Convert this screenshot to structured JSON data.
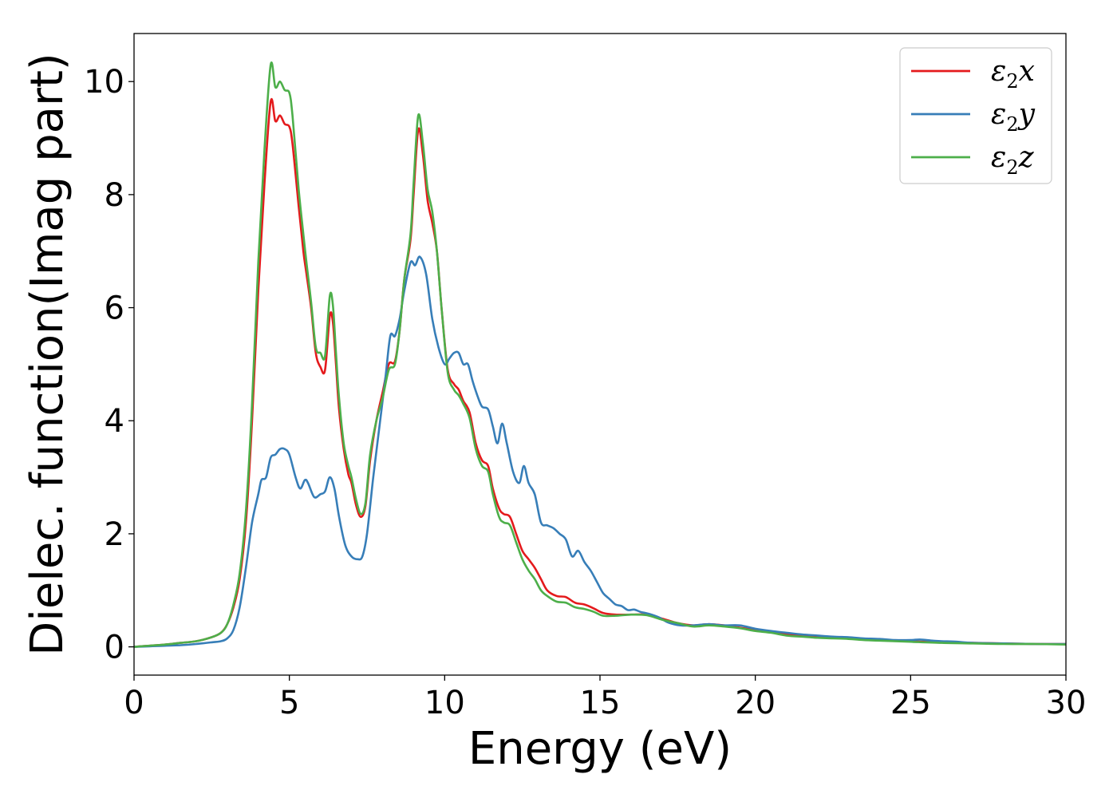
{
  "chart_data": {
    "type": "line",
    "xlabel": "Energy (eV)",
    "ylabel": "Dielec. function(Imag part)",
    "xlim": [
      0,
      30
    ],
    "ylim": [
      -0.5,
      10.85
    ],
    "xticks": [
      0,
      5,
      10,
      15,
      20,
      25,
      30
    ],
    "yticks": [
      0,
      2,
      4,
      6,
      8,
      10
    ],
    "grid": false,
    "legend_position": "top-right",
    "series": [
      {
        "name": "ε2x",
        "legend_base": "ε",
        "legend_sub": "2",
        "legend_suffix": "x",
        "color": "#e41a1c",
        "points": [
          [
            0,
            0
          ],
          [
            0.5,
            0.02
          ],
          [
            1,
            0.04
          ],
          [
            1.5,
            0.07
          ],
          [
            2,
            0.1
          ],
          [
            2.5,
            0.17
          ],
          [
            2.8,
            0.25
          ],
          [
            3,
            0.4
          ],
          [
            3.2,
            0.7
          ],
          [
            3.4,
            1.2
          ],
          [
            3.6,
            2.2
          ],
          [
            3.8,
            4.0
          ],
          [
            4.0,
            6.3
          ],
          [
            4.2,
            8.2
          ],
          [
            4.4,
            9.65
          ],
          [
            4.55,
            9.3
          ],
          [
            4.7,
            9.4
          ],
          [
            4.85,
            9.25
          ],
          [
            5.0,
            9.2
          ],
          [
            5.1,
            8.9
          ],
          [
            5.3,
            7.8
          ],
          [
            5.45,
            7.0
          ],
          [
            5.55,
            6.6
          ],
          [
            5.7,
            6.0
          ],
          [
            5.85,
            5.2
          ],
          [
            6.0,
            4.95
          ],
          [
            6.15,
            4.9
          ],
          [
            6.3,
            5.85
          ],
          [
            6.4,
            5.75
          ],
          [
            6.5,
            5.0
          ],
          [
            6.6,
            4.2
          ],
          [
            6.75,
            3.5
          ],
          [
            6.9,
            3.05
          ],
          [
            7.0,
            2.9
          ],
          [
            7.15,
            2.5
          ],
          [
            7.3,
            2.3
          ],
          [
            7.45,
            2.5
          ],
          [
            7.6,
            3.3
          ],
          [
            7.8,
            4.0
          ],
          [
            8.0,
            4.5
          ],
          [
            8.2,
            5.0
          ],
          [
            8.4,
            5.05
          ],
          [
            8.55,
            5.6
          ],
          [
            8.7,
            6.5
          ],
          [
            8.9,
            7.2
          ],
          [
            9.0,
            8.0
          ],
          [
            9.15,
            9.15
          ],
          [
            9.3,
            8.7
          ],
          [
            9.45,
            7.9
          ],
          [
            9.6,
            7.5
          ],
          [
            9.75,
            7.0
          ],
          [
            9.9,
            6.0
          ],
          [
            10.1,
            4.9
          ],
          [
            10.3,
            4.65
          ],
          [
            10.45,
            4.55
          ],
          [
            10.6,
            4.35
          ],
          [
            10.8,
            4.15
          ],
          [
            11.0,
            3.6
          ],
          [
            11.2,
            3.3
          ],
          [
            11.4,
            3.2
          ],
          [
            11.55,
            2.8
          ],
          [
            11.75,
            2.45
          ],
          [
            11.9,
            2.35
          ],
          [
            12.1,
            2.3
          ],
          [
            12.3,
            2.0
          ],
          [
            12.5,
            1.7
          ],
          [
            12.7,
            1.55
          ],
          [
            12.9,
            1.4
          ],
          [
            13.1,
            1.2
          ],
          [
            13.3,
            1.0
          ],
          [
            13.6,
            0.9
          ],
          [
            13.9,
            0.88
          ],
          [
            14.2,
            0.78
          ],
          [
            14.5,
            0.75
          ],
          [
            14.8,
            0.68
          ],
          [
            15.1,
            0.6
          ],
          [
            15.5,
            0.57
          ],
          [
            16,
            0.57
          ],
          [
            16.5,
            0.57
          ],
          [
            17,
            0.5
          ],
          [
            17.5,
            0.42
          ],
          [
            18,
            0.38
          ],
          [
            18.5,
            0.4
          ],
          [
            19,
            0.38
          ],
          [
            19.5,
            0.34
          ],
          [
            20,
            0.3
          ],
          [
            20.5,
            0.27
          ],
          [
            21,
            0.22
          ],
          [
            21.5,
            0.2
          ],
          [
            22,
            0.18
          ],
          [
            22.5,
            0.16
          ],
          [
            23,
            0.15
          ],
          [
            23.5,
            0.13
          ],
          [
            24,
            0.12
          ],
          [
            25,
            0.1
          ],
          [
            26,
            0.08
          ],
          [
            27,
            0.07
          ],
          [
            28,
            0.06
          ],
          [
            29,
            0.05
          ],
          [
            30,
            0.05
          ]
        ]
      },
      {
        "name": "ε2y",
        "legend_base": "ε",
        "legend_sub": "2",
        "legend_suffix": "y",
        "color": "#377eb8",
        "points": [
          [
            0,
            0
          ],
          [
            0.5,
            0.01
          ],
          [
            1,
            0.02
          ],
          [
            1.5,
            0.03
          ],
          [
            2,
            0.05
          ],
          [
            2.5,
            0.08
          ],
          [
            2.8,
            0.1
          ],
          [
            3.0,
            0.15
          ],
          [
            3.2,
            0.3
          ],
          [
            3.4,
            0.7
          ],
          [
            3.6,
            1.4
          ],
          [
            3.8,
            2.2
          ],
          [
            4.0,
            2.7
          ],
          [
            4.1,
            2.95
          ],
          [
            4.25,
            3.0
          ],
          [
            4.4,
            3.35
          ],
          [
            4.55,
            3.4
          ],
          [
            4.7,
            3.5
          ],
          [
            4.85,
            3.5
          ],
          [
            5.0,
            3.4
          ],
          [
            5.2,
            3.0
          ],
          [
            5.35,
            2.8
          ],
          [
            5.5,
            2.95
          ],
          [
            5.6,
            2.9
          ],
          [
            5.8,
            2.65
          ],
          [
            6.0,
            2.7
          ],
          [
            6.15,
            2.75
          ],
          [
            6.3,
            3.0
          ],
          [
            6.45,
            2.8
          ],
          [
            6.6,
            2.3
          ],
          [
            6.8,
            1.8
          ],
          [
            7.0,
            1.6
          ],
          [
            7.2,
            1.55
          ],
          [
            7.35,
            1.6
          ],
          [
            7.5,
            2.0
          ],
          [
            7.7,
            3.0
          ],
          [
            7.9,
            3.9
          ],
          [
            8.1,
            4.8
          ],
          [
            8.25,
            5.5
          ],
          [
            8.4,
            5.5
          ],
          [
            8.55,
            5.8
          ],
          [
            8.7,
            6.3
          ],
          [
            8.9,
            6.8
          ],
          [
            9.05,
            6.75
          ],
          [
            9.2,
            6.9
          ],
          [
            9.4,
            6.6
          ],
          [
            9.6,
            5.8
          ],
          [
            9.8,
            5.3
          ],
          [
            10.0,
            5.0
          ],
          [
            10.15,
            5.1
          ],
          [
            10.3,
            5.2
          ],
          [
            10.45,
            5.2
          ],
          [
            10.6,
            5.0
          ],
          [
            10.75,
            5.0
          ],
          [
            10.9,
            4.7
          ],
          [
            11.05,
            4.45
          ],
          [
            11.2,
            4.25
          ],
          [
            11.4,
            4.2
          ],
          [
            11.55,
            3.9
          ],
          [
            11.7,
            3.6
          ],
          [
            11.85,
            3.95
          ],
          [
            12.0,
            3.6
          ],
          [
            12.2,
            3.1
          ],
          [
            12.4,
            2.9
          ],
          [
            12.55,
            3.2
          ],
          [
            12.7,
            2.9
          ],
          [
            12.9,
            2.7
          ],
          [
            13.1,
            2.2
          ],
          [
            13.3,
            2.15
          ],
          [
            13.5,
            2.1
          ],
          [
            13.7,
            2.0
          ],
          [
            13.9,
            1.9
          ],
          [
            14.1,
            1.6
          ],
          [
            14.3,
            1.7
          ],
          [
            14.5,
            1.5
          ],
          [
            14.7,
            1.35
          ],
          [
            14.9,
            1.15
          ],
          [
            15.1,
            0.95
          ],
          [
            15.3,
            0.85
          ],
          [
            15.5,
            0.75
          ],
          [
            15.7,
            0.72
          ],
          [
            15.9,
            0.65
          ],
          [
            16.1,
            0.66
          ],
          [
            16.3,
            0.62
          ],
          [
            16.6,
            0.58
          ],
          [
            16.9,
            0.52
          ],
          [
            17.2,
            0.43
          ],
          [
            17.6,
            0.38
          ],
          [
            18.0,
            0.38
          ],
          [
            18.5,
            0.4
          ],
          [
            19,
            0.38
          ],
          [
            19.5,
            0.38
          ],
          [
            20,
            0.32
          ],
          [
            20.5,
            0.28
          ],
          [
            21,
            0.25
          ],
          [
            21.5,
            0.22
          ],
          [
            22,
            0.2
          ],
          [
            22.5,
            0.18
          ],
          [
            23,
            0.17
          ],
          [
            23.5,
            0.15
          ],
          [
            24,
            0.14
          ],
          [
            24.5,
            0.12
          ],
          [
            25,
            0.12
          ],
          [
            25.3,
            0.13
          ],
          [
            25.7,
            0.11
          ],
          [
            26,
            0.1
          ],
          [
            26.5,
            0.09
          ],
          [
            27,
            0.07
          ],
          [
            28,
            0.06
          ],
          [
            29,
            0.05
          ],
          [
            30,
            0.05
          ]
        ]
      },
      {
        "name": "ε2z",
        "legend_base": "ε",
        "legend_sub": "2",
        "legend_suffix": "z",
        "color": "#4daf4a",
        "points": [
          [
            0,
            0
          ],
          [
            0.5,
            0.02
          ],
          [
            1,
            0.04
          ],
          [
            1.5,
            0.07
          ],
          [
            2,
            0.1
          ],
          [
            2.5,
            0.17
          ],
          [
            2.8,
            0.25
          ],
          [
            3,
            0.4
          ],
          [
            3.2,
            0.75
          ],
          [
            3.4,
            1.3
          ],
          [
            3.6,
            2.4
          ],
          [
            3.8,
            4.3
          ],
          [
            4.0,
            6.8
          ],
          [
            4.2,
            8.8
          ],
          [
            4.4,
            10.3
          ],
          [
            4.55,
            9.9
          ],
          [
            4.7,
            10.0
          ],
          [
            4.85,
            9.85
          ],
          [
            5.0,
            9.8
          ],
          [
            5.1,
            9.4
          ],
          [
            5.3,
            8.1
          ],
          [
            5.45,
            7.3
          ],
          [
            5.55,
            6.8
          ],
          [
            5.7,
            6.1
          ],
          [
            5.85,
            5.3
          ],
          [
            6.0,
            5.2
          ],
          [
            6.15,
            5.15
          ],
          [
            6.3,
            6.2
          ],
          [
            6.4,
            6.05
          ],
          [
            6.5,
            5.2
          ],
          [
            6.6,
            4.4
          ],
          [
            6.75,
            3.6
          ],
          [
            6.9,
            3.2
          ],
          [
            7.0,
            3.0
          ],
          [
            7.15,
            2.6
          ],
          [
            7.3,
            2.35
          ],
          [
            7.45,
            2.55
          ],
          [
            7.6,
            3.4
          ],
          [
            7.8,
            4.0
          ],
          [
            8.0,
            4.4
          ],
          [
            8.2,
            4.9
          ],
          [
            8.4,
            5.0
          ],
          [
            8.55,
            5.6
          ],
          [
            8.7,
            6.5
          ],
          [
            8.9,
            7.3
          ],
          [
            9.0,
            8.2
          ],
          [
            9.15,
            9.4
          ],
          [
            9.3,
            8.9
          ],
          [
            9.45,
            8.1
          ],
          [
            9.6,
            7.7
          ],
          [
            9.75,
            7.0
          ],
          [
            9.9,
            6.0
          ],
          [
            10.1,
            4.85
          ],
          [
            10.3,
            4.55
          ],
          [
            10.45,
            4.45
          ],
          [
            10.6,
            4.3
          ],
          [
            10.8,
            4.05
          ],
          [
            11.0,
            3.5
          ],
          [
            11.2,
            3.2
          ],
          [
            11.4,
            3.1
          ],
          [
            11.55,
            2.7
          ],
          [
            11.75,
            2.3
          ],
          [
            11.9,
            2.2
          ],
          [
            12.1,
            2.15
          ],
          [
            12.3,
            1.85
          ],
          [
            12.5,
            1.55
          ],
          [
            12.7,
            1.35
          ],
          [
            12.9,
            1.2
          ],
          [
            13.1,
            1.0
          ],
          [
            13.3,
            0.9
          ],
          [
            13.6,
            0.8
          ],
          [
            13.9,
            0.78
          ],
          [
            14.2,
            0.7
          ],
          [
            14.5,
            0.67
          ],
          [
            14.8,
            0.62
          ],
          [
            15.1,
            0.55
          ],
          [
            15.5,
            0.55
          ],
          [
            16,
            0.57
          ],
          [
            16.5,
            0.56
          ],
          [
            17,
            0.48
          ],
          [
            17.5,
            0.42
          ],
          [
            18,
            0.36
          ],
          [
            18.5,
            0.38
          ],
          [
            19,
            0.36
          ],
          [
            19.5,
            0.33
          ],
          [
            20,
            0.28
          ],
          [
            20.5,
            0.25
          ],
          [
            21,
            0.2
          ],
          [
            21.5,
            0.18
          ],
          [
            22,
            0.16
          ],
          [
            22.5,
            0.15
          ],
          [
            23,
            0.14
          ],
          [
            23.5,
            0.12
          ],
          [
            24,
            0.11
          ],
          [
            25,
            0.09
          ],
          [
            26,
            0.07
          ],
          [
            27,
            0.06
          ],
          [
            28,
            0.05
          ],
          [
            29,
            0.05
          ],
          [
            30,
            0.04
          ]
        ]
      }
    ]
  }
}
